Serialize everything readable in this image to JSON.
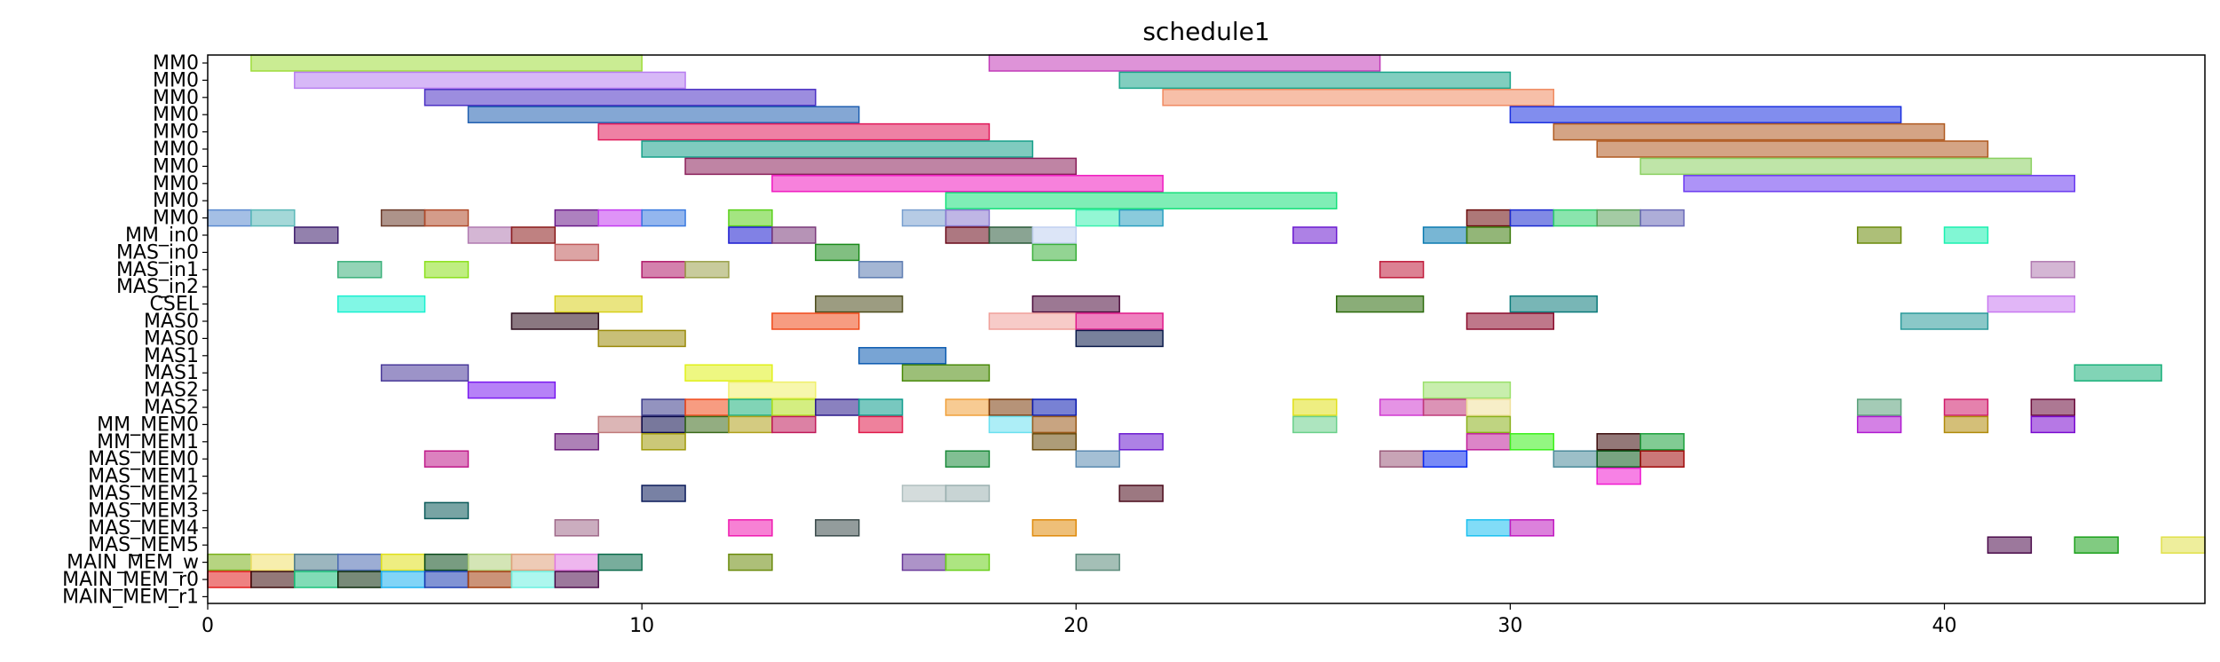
{
  "chart_data": {
    "type": "gantt",
    "title": "schedule1",
    "xlim": [
      0,
      46
    ],
    "xticks": [
      "0",
      "10",
      "20",
      "30",
      "40"
    ],
    "rows": [
      "MM0",
      "MM0",
      "MM0",
      "MM0",
      "MM0",
      "MM0",
      "MM0",
      "MM0",
      "MM0",
      "MM0",
      "MM_in0",
      "MAS_in0",
      "MAS_in1",
      "MAS_in2",
      "CSEL",
      "MAS0",
      "MAS0",
      "MAS1",
      "MAS1",
      "MAS2",
      "MAS2",
      "MM_MEM0",
      "MM_MEM1",
      "MAS_MEM0",
      "MAS_MEM1",
      "MAS_MEM2",
      "MAS_MEM3",
      "MAS_MEM4",
      "MAS_MEM5",
      "MAIN_MEM_w",
      "MAIN_MEM_r0",
      "MAIN_MEM_r1"
    ],
    "bars": [
      [
        0,
        1,
        10,
        "#9edc3a"
      ],
      [
        0,
        18,
        27,
        "#c23ab8"
      ],
      [
        1,
        2,
        11,
        "#b77ef0"
      ],
      [
        1,
        21,
        30,
        "#1aa58a"
      ],
      [
        2,
        5,
        14,
        "#4a2fc4"
      ],
      [
        2,
        22,
        31,
        "#f08a60"
      ],
      [
        3,
        6,
        15,
        "#1f5fb0"
      ],
      [
        3,
        30,
        39,
        "#1a2fe0"
      ],
      [
        4,
        9,
        18,
        "#e01a5a"
      ],
      [
        4,
        31,
        40,
        "#b05a20"
      ],
      [
        5,
        10,
        19,
        "#16a08a"
      ],
      [
        5,
        32,
        41,
        "#b05a20"
      ],
      [
        6,
        11,
        20,
        "#8a1f5a"
      ],
      [
        6,
        33,
        42,
        "#8ad060"
      ],
      [
        7,
        13,
        22,
        "#f01ac0"
      ],
      [
        7,
        34,
        43,
        "#6a3af0"
      ],
      [
        8,
        17,
        26,
        "#16e07a"
      ],
      [
        9,
        0,
        1,
        "#5a8ad0"
      ],
      [
        9,
        1,
        2,
        "#5ab8b8"
      ],
      [
        9,
        4,
        5,
        "#6a3a2a"
      ],
      [
        9,
        5,
        6,
        "#b04a2a"
      ],
      [
        9,
        8,
        9,
        "#6a1a8a"
      ],
      [
        9,
        9,
        10,
        "#c43af0"
      ],
      [
        9,
        10,
        11,
        "#3a7ae0"
      ],
      [
        9,
        12,
        13,
        "#5ad01a"
      ],
      [
        9,
        16,
        17,
        "#7aa0d0"
      ],
      [
        9,
        17,
        18,
        "#8a7ad0"
      ],
      [
        9,
        20,
        21,
        "#3af0b0"
      ],
      [
        9,
        21,
        22,
        "#2aa0c0"
      ],
      [
        9,
        29,
        30,
        "#6a0a0a"
      ],
      [
        9,
        30,
        31,
        "#1a2ad0"
      ],
      [
        9,
        31,
        32,
        "#2ad06a"
      ],
      [
        9,
        32,
        33,
        "#5aa05a"
      ],
      [
        9,
        33,
        34,
        "#6a6ab8"
      ],
      [
        10,
        2,
        3,
        "#3a1a6a"
      ],
      [
        10,
        6,
        7,
        "#b07ab0"
      ],
      [
        10,
        7,
        8,
        "#8a1a1a"
      ],
      [
        10,
        12,
        13,
        "#1a1ad0"
      ],
      [
        10,
        13,
        14,
        "#7a3a7a"
      ],
      [
        10,
        17,
        18,
        "#6a0a1a"
      ],
      [
        10,
        18,
        19,
        "#2a5a3a"
      ],
      [
        10,
        19,
        20,
        "#c0d0f0"
      ],
      [
        10,
        25,
        26,
        "#6a1ad0"
      ],
      [
        10,
        28,
        29,
        "#0a7ab0"
      ],
      [
        10,
        29,
        30,
        "#3a7a0a"
      ],
      [
        10,
        38,
        39,
        "#6a8a0a"
      ],
      [
        10,
        40,
        41,
        "#1af0b0"
      ],
      [
        11,
        8,
        9,
        "#c05a5a"
      ],
      [
        11,
        14,
        15,
        "#1a8a1a"
      ],
      [
        11,
        19,
        20,
        "#3ab03a"
      ],
      [
        12,
        3,
        4,
        "#3ab07a"
      ],
      [
        12,
        5,
        6,
        "#8ae01a"
      ],
      [
        12,
        10,
        11,
        "#b01a6a"
      ],
      [
        12,
        11,
        12,
        "#9aa04a"
      ],
      [
        12,
        15,
        16,
        "#5a7ab0"
      ],
      [
        12,
        27,
        28,
        "#c01a3a"
      ],
      [
        12,
        42,
        43,
        "#b07ab0"
      ],
      [
        14,
        3,
        5,
        "#1af0d0"
      ],
      [
        14,
        8,
        10,
        "#d8d01a"
      ],
      [
        14,
        14,
        16,
        "#4a4a1a"
      ],
      [
        14,
        19,
        21,
        "#4a0a3a"
      ],
      [
        14,
        26,
        28,
        "#2a6a0a"
      ],
      [
        14,
        30,
        32,
        "#0a7a7a"
      ],
      [
        14,
        41,
        43,
        "#c87af0"
      ],
      [
        15,
        7,
        9,
        "#2a0a1a"
      ],
      [
        15,
        13,
        15,
        "#f04a1a"
      ],
      [
        15,
        18,
        20,
        "#f0a09a"
      ],
      [
        15,
        20,
        22,
        "#e01a8a"
      ],
      [
        15,
        29,
        31,
        "#8a0a2a"
      ],
      [
        15,
        39,
        41,
        "#2a9a9a"
      ],
      [
        16,
        9,
        11,
        "#9a8a0a"
      ],
      [
        16,
        20,
        22,
        "#0a1a4a"
      ],
      [
        17,
        15,
        17,
        "#0a5ab0"
      ],
      [
        18,
        4,
        6,
        "#4a3a9a"
      ],
      [
        18,
        11,
        13,
        "#e0f01a"
      ],
      [
        18,
        16,
        18,
        "#4a8a0a"
      ],
      [
        18,
        43,
        45,
        "#1ab07a"
      ],
      [
        19,
        6,
        8,
        "#7a1af0"
      ],
      [
        19,
        12,
        14,
        "#f0f06a"
      ],
      [
        19,
        28,
        30,
        "#9ae06a"
      ],
      [
        20,
        10,
        11,
        "#3a3a8a"
      ],
      [
        20,
        11,
        12,
        "#f04a1a"
      ],
      [
        20,
        12,
        13,
        "#1ab07a"
      ],
      [
        20,
        13,
        14,
        "#b0e01a"
      ],
      [
        20,
        14,
        15,
        "#2a1a8a"
      ],
      [
        20,
        15,
        16,
        "#0a9a8a"
      ],
      [
        20,
        17,
        18,
        "#f0a03a"
      ],
      [
        20,
        18,
        19,
        "#7a3a0a"
      ],
      [
        20,
        19,
        20,
        "#0a1ab0"
      ],
      [
        20,
        25,
        26,
        "#e0e01a"
      ],
      [
        20,
        27,
        28,
        "#d03ad0"
      ],
      [
        20,
        28,
        29,
        "#c03a7a"
      ],
      [
        20,
        29,
        30,
        "#f0e09a"
      ],
      [
        20,
        38,
        39,
        "#5aa07a"
      ],
      [
        20,
        40,
        41,
        "#d01a6a"
      ],
      [
        20,
        42,
        43,
        "#6a0a3a"
      ],
      [
        21,
        9,
        10,
        "#c07a7a"
      ],
      [
        21,
        10,
        11,
        "#0a0a4a"
      ],
      [
        21,
        11,
        12,
        "#3a6a1a"
      ],
      [
        21,
        12,
        13,
        "#b0a01a"
      ],
      [
        21,
        13,
        14,
        "#c01a5a"
      ],
      [
        21,
        15,
        16,
        "#e01a4a"
      ],
      [
        21,
        18,
        19,
        "#6ae0f0"
      ],
      [
        21,
        19,
        20,
        "#9a5a1a"
      ],
      [
        21,
        25,
        26,
        "#6ad08a"
      ],
      [
        21,
        29,
        30,
        "#8ab01a"
      ],
      [
        21,
        38,
        39,
        "#b01ad0"
      ],
      [
        21,
        40,
        41,
        "#b08a0a"
      ],
      [
        21,
        42,
        43,
        "#7a0ad0"
      ],
      [
        22,
        8,
        9,
        "#6a1a7a"
      ],
      [
        22,
        10,
        11,
        "#a09a0a"
      ],
      [
        22,
        19,
        20,
        "#6a4a0a"
      ],
      [
        22,
        21,
        22,
        "#6a1ad0"
      ],
      [
        22,
        29,
        30,
        "#c0209a"
      ],
      [
        22,
        30,
        31,
        "#3af01a"
      ],
      [
        22,
        32,
        33,
        "#3a0a0a"
      ],
      [
        22,
        33,
        34,
        "#1aa03a"
      ],
      [
        23,
        5,
        6,
        "#c01a8a"
      ],
      [
        23,
        17,
        18,
        "#1a8a3a"
      ],
      [
        23,
        20,
        21,
        "#5a8ab0"
      ],
      [
        23,
        27,
        28,
        "#9a5a7a"
      ],
      [
        23,
        28,
        29,
        "#0a2af0"
      ],
      [
        23,
        31,
        32,
        "#4a8a9a"
      ],
      [
        23,
        32,
        33,
        "#0a5a1a"
      ],
      [
        23,
        33,
        34,
        "#a00a0a"
      ],
      [
        24,
        32,
        33,
        "#f01ad0"
      ],
      [
        25,
        10,
        11,
        "#0a1a5a"
      ],
      [
        25,
        16,
        17,
        "#b0c0c0"
      ],
      [
        25,
        17,
        18,
        "#9ab0b0"
      ],
      [
        25,
        21,
        22,
        "#4a0a1a"
      ],
      [
        26,
        5,
        6,
        "#0a5a5a"
      ],
      [
        27,
        8,
        9,
        "#a06a8a"
      ],
      [
        27,
        12,
        13,
        "#f01ab0"
      ],
      [
        27,
        14,
        15,
        "#3a4a4a"
      ],
      [
        27,
        19,
        20,
        "#e08a0a"
      ],
      [
        27,
        29,
        30,
        "#1ac0f0"
      ],
      [
        27,
        30,
        31,
        "#c01ac0"
      ],
      [
        28,
        41,
        42,
        "#4a0a4a"
      ],
      [
        28,
        43,
        44,
        "#1aa01a"
      ],
      [
        28,
        45,
        46,
        "#e0e04a"
      ],
      [
        29,
        0,
        1,
        "#7ab01a"
      ],
      [
        29,
        1,
        2,
        "#f0e06a"
      ],
      [
        29,
        2,
        3,
        "#4a7a8a"
      ],
      [
        29,
        3,
        4,
        "#4a6ab0"
      ],
      [
        29,
        4,
        5,
        "#e0e01a"
      ],
      [
        29,
        5,
        6,
        "#0a4a1a"
      ],
      [
        29,
        6,
        7,
        "#b0d07a"
      ],
      [
        29,
        7,
        8,
        "#e0a07a"
      ],
      [
        29,
        8,
        9,
        "#e07ae0"
      ],
      [
        29,
        9,
        10,
        "#0a6a4a"
      ],
      [
        29,
        12,
        13,
        "#6a8a0a"
      ],
      [
        29,
        16,
        17,
        "#6a3a9a"
      ],
      [
        29,
        17,
        18,
        "#6ad01a"
      ],
      [
        29,
        20,
        21,
        "#5a8a7a"
      ],
      [
        30,
        0,
        1,
        "#e01a1a"
      ],
      [
        30,
        1,
        2,
        "#3a0a0a"
      ],
      [
        30,
        2,
        3,
        "#1ac07a"
      ],
      [
        30,
        3,
        4,
        "#0a2a0a"
      ],
      [
        30,
        4,
        5,
        "#1ab0f0"
      ],
      [
        30,
        5,
        6,
        "#1a3ab0"
      ],
      [
        30,
        6,
        7,
        "#a03a0a"
      ],
      [
        30,
        7,
        8,
        "#6af0e0"
      ],
      [
        30,
        8,
        9,
        "#4a0a4a"
      ]
    ]
  }
}
